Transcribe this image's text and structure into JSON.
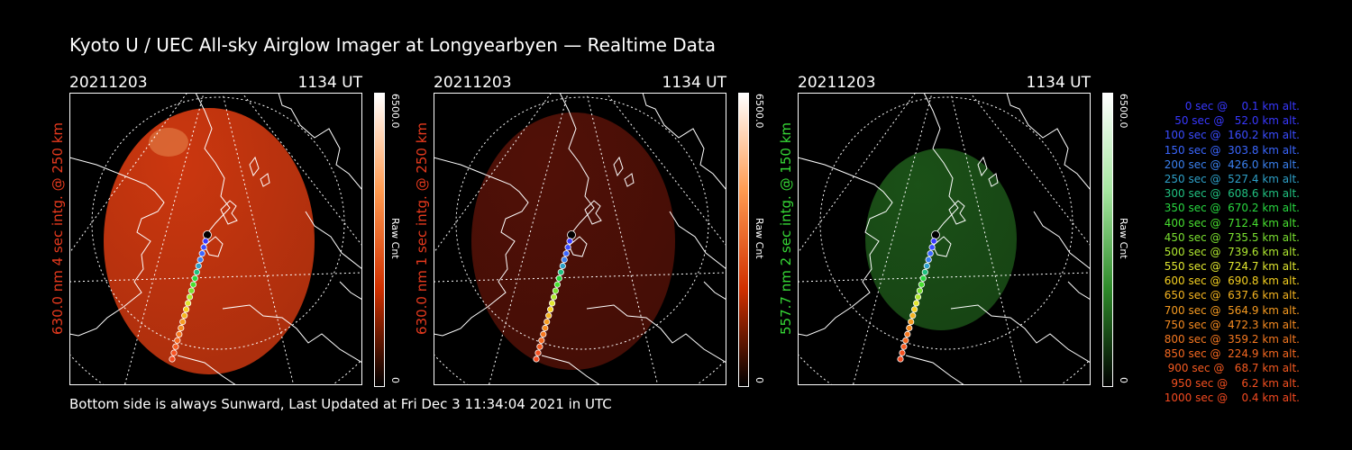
{
  "title": "Kyoto U / UEC All-sky Airglow Imager at Longyearbyen — Realtime Data",
  "footer": "Bottom side is always Sunward, Last Updated at Fri Dec  3 11:34:04 2021 in UTC",
  "colorbar": {
    "max_label": "6500.0",
    "min_label": "0",
    "unit_label": "Raw Cnt"
  },
  "chart_data": [
    {
      "type": "heatmap",
      "date": "20211203",
      "time": "1134 UT",
      "ylabel": "630.0 nm 4 sec intg. @ 250 km",
      "label_color": "#e83a1e",
      "image_color": "#d63a10",
      "image_opacity": 0.95,
      "colorbar_gradient": [
        "#ffffff",
        "#ff9a50",
        "#d03000",
        "#000000"
      ],
      "track_points": [
        [
          0,
          0
        ],
        [
          0.05,
          0.09
        ],
        [
          0.1,
          0.18
        ],
        [
          0.15,
          0.27
        ],
        [
          0.2,
          0.36
        ],
        [
          0.25,
          0.45
        ],
        [
          0.3,
          0.54
        ],
        [
          0.35,
          0.63
        ],
        [
          0.4,
          0.72
        ],
        [
          0.45,
          0.81
        ],
        [
          0.5,
          0.9
        ]
      ]
    },
    {
      "type": "heatmap",
      "date": "20211203",
      "time": "1134 UT",
      "ylabel": "630.0 nm 1 sec intg. @ 250 km",
      "label_color": "#e83a1e",
      "image_color": "#5a1208",
      "image_opacity": 0.9,
      "colorbar_gradient": [
        "#ffffff",
        "#ff9a50",
        "#d03000",
        "#000000"
      ]
    },
    {
      "type": "heatmap",
      "date": "20211203",
      "time": "1134 UT",
      "ylabel": "557.7 nm 2 sec intg. @ 150 km",
      "label_color": "#36d836",
      "image_color": "#1e5a1a",
      "image_opacity": 0.9,
      "colorbar_gradient": [
        "#ffffff",
        "#a6e6a0",
        "#2e8a2a",
        "#000000"
      ]
    }
  ],
  "trajectory": [
    {
      "t": "0 sec",
      "alt": "0.1",
      "color": "#3838ff"
    },
    {
      "t": "50 sec",
      "alt": "52.0",
      "color": "#3838ff"
    },
    {
      "t": "100 sec",
      "alt": "160.2",
      "color": "#3a4cff"
    },
    {
      "t": "150 sec",
      "alt": "303.8",
      "color": "#3a66ff"
    },
    {
      "t": "200 sec",
      "alt": "426.0",
      "color": "#3a80ee"
    },
    {
      "t": "250 sec",
      "alt": "527.4",
      "color": "#2ea0c8"
    },
    {
      "t": "300 sec",
      "alt": "608.6",
      "color": "#20c080"
    },
    {
      "t": "350 sec",
      "alt": "670.2",
      "color": "#28d840"
    },
    {
      "t": "400 sec",
      "alt": "712.4",
      "color": "#48e030"
    },
    {
      "t": "450 sec",
      "alt": "735.5",
      "color": "#7ae030"
    },
    {
      "t": "500 sec",
      "alt": "739.6",
      "color": "#b0e830"
    },
    {
      "t": "550 sec",
      "alt": "724.7",
      "color": "#e0e630"
    },
    {
      "t": "600 sec",
      "alt": "690.8",
      "color": "#f5d020"
    },
    {
      "t": "650 sec",
      "alt": "637.6",
      "color": "#f5b420"
    },
    {
      "t": "700 sec",
      "alt": "564.9",
      "color": "#f59a20"
    },
    {
      "t": "750 sec",
      "alt": "472.3",
      "color": "#f58a20"
    },
    {
      "t": "800 sec",
      "alt": "359.2",
      "color": "#f57820"
    },
    {
      "t": "850 sec",
      "alt": "224.9",
      "color": "#f56820"
    },
    {
      "t": "900 sec",
      "alt": "68.7",
      "color": "#f55a20"
    },
    {
      "t": "950 sec",
      "alt": "6.2",
      "color": "#f55020"
    },
    {
      "t": "1000 sec",
      "alt": "0.4",
      "color": "#f54a20"
    }
  ]
}
